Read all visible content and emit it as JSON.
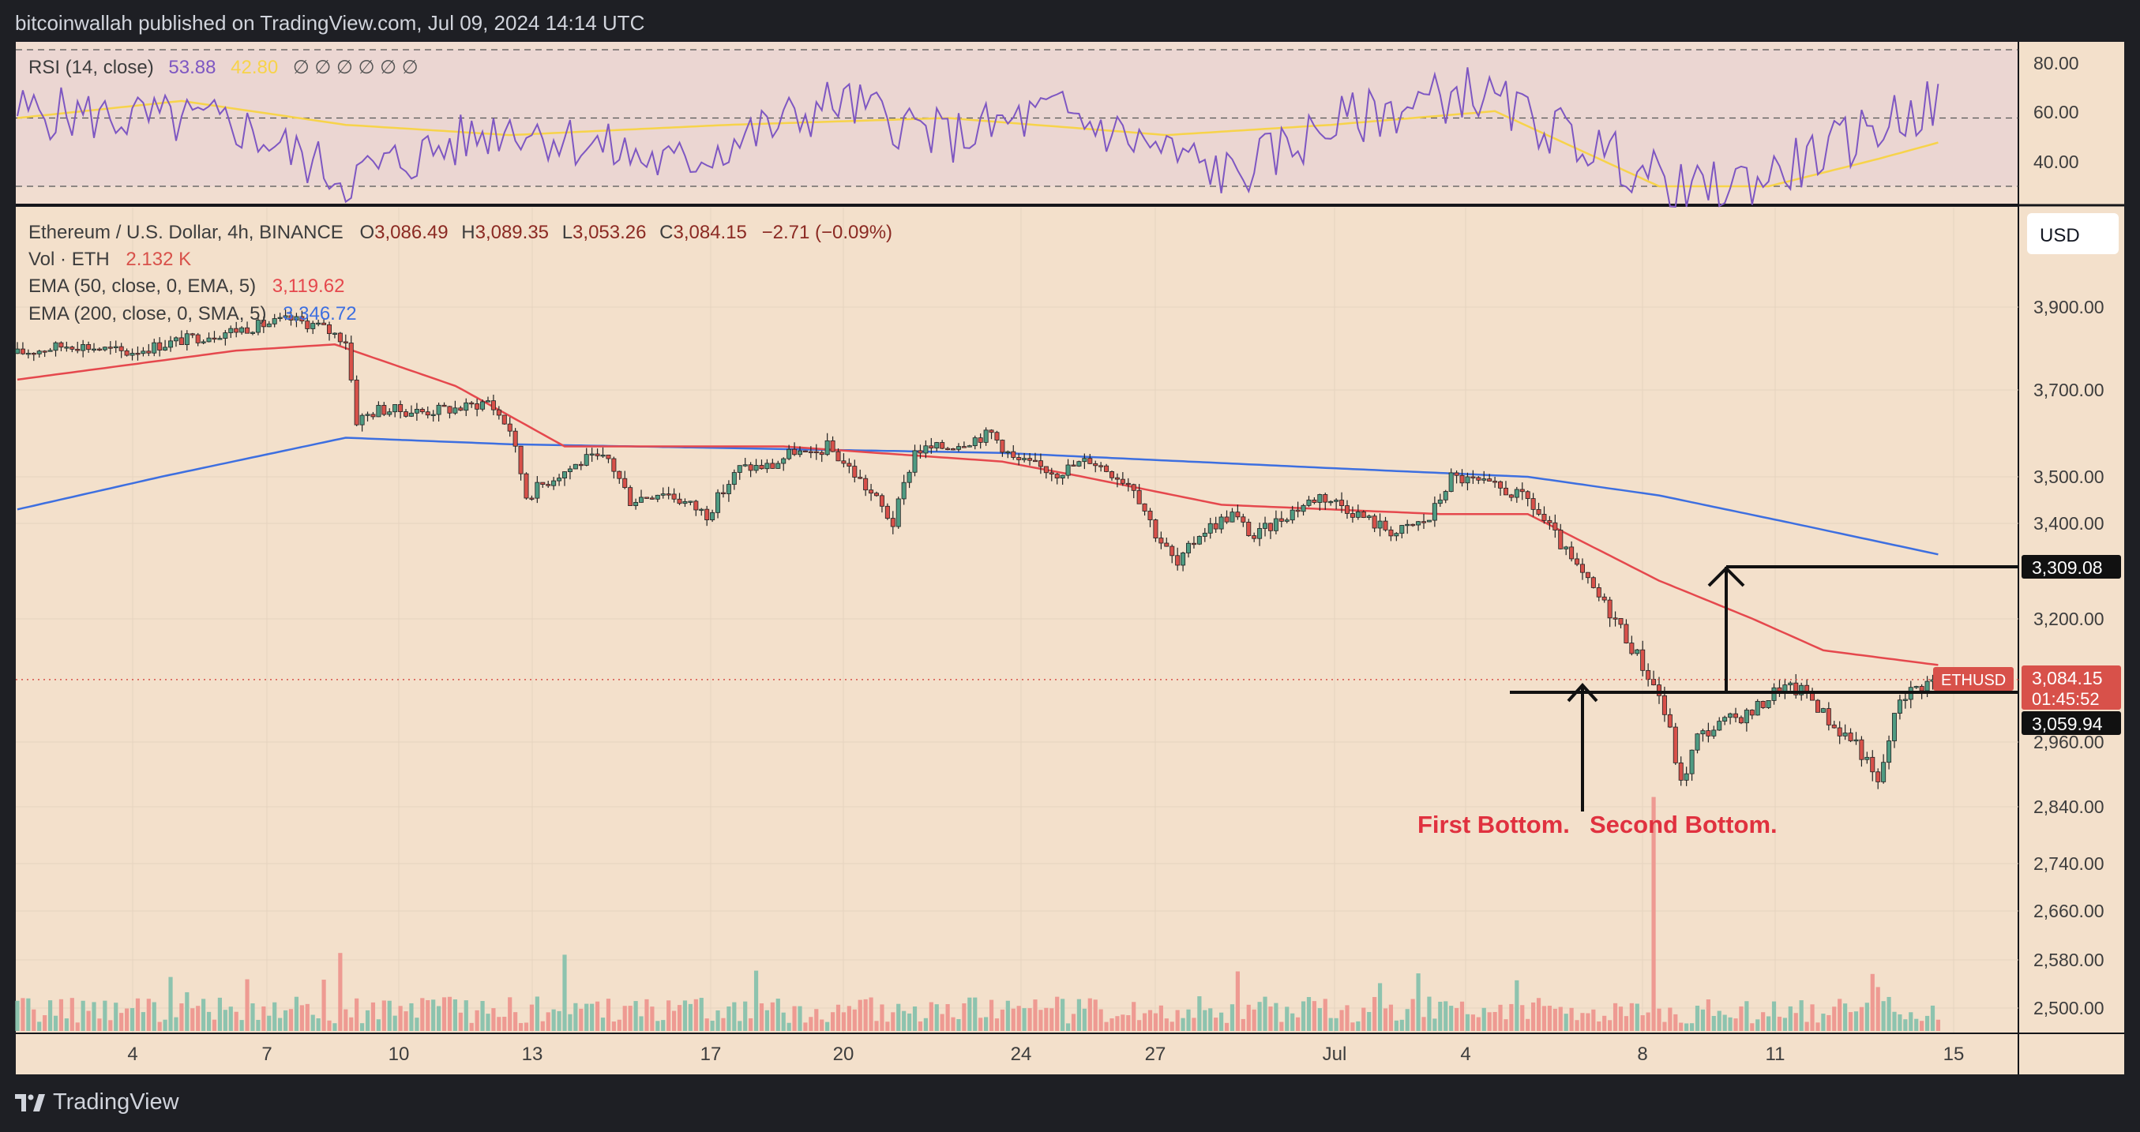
{
  "header": {
    "published": "bitcoinwallah published on TradingView.com, Jul 09, 2024 14:14 UTC"
  },
  "footer": {
    "brand": "TradingView",
    "icon": "tradingview-logo-icon"
  },
  "rsi": {
    "label": "RSI (14, close)",
    "value": "53.88",
    "ma_value": "42.80",
    "placeholders": "∅ ∅ ∅ ∅ ∅ ∅",
    "levels": [
      "80.00",
      "60.00",
      "40.00"
    ],
    "colors": {
      "line": "#7e57c2",
      "ma": "#f7d34a"
    }
  },
  "legend": {
    "symbol": "Ethereum / U.S. Dollar, 4h, BINANCE",
    "o_label": "O",
    "o": "3,086.49",
    "h_label": "H",
    "h": "3,089.35",
    "l_label": "L",
    "l": "3,053.26",
    "c_label": "C",
    "c": "3,084.15",
    "change": "−2.71 (−0.09%)",
    "vol_label": "Vol · ETH",
    "vol": "2.132 K",
    "ema50_label": "EMA (50, close, 0, EMA, 5)",
    "ema50": "3,119.62",
    "ema200_label": "EMA (200, close, 0, SMA, 5)",
    "ema200": "3,346.72"
  },
  "currency_button": "USD",
  "price_axis": [
    "3,900.00",
    "3,700.00",
    "3,500.00",
    "3,400.00",
    "3,200.00",
    "2,960.00",
    "2,840.00",
    "2,740.00",
    "2,660.00",
    "2,580.00",
    "2,500.00"
  ],
  "price_tags": {
    "target": "3,309.08",
    "current_symbol": "ETHUSD",
    "current": "3,084.15",
    "countdown": "01:45:52",
    "neckline": "3,059.94"
  },
  "time_axis": [
    "4",
    "7",
    "10",
    "13",
    "17",
    "20",
    "24",
    "27",
    "Jul",
    "4",
    "8",
    "11",
    "15"
  ],
  "annotations": {
    "first": "First Bottom.",
    "second": "Second Bottom."
  },
  "colors": {
    "bg": "#f3e0cb",
    "up": "#4f9b82",
    "down": "#d8514a",
    "ema50": "#e5484d",
    "ema200": "#3d6fe0",
    "annotation": "#e0313f"
  },
  "chart_data": {
    "type": "candlestick",
    "title": "Ethereum / U.S. Dollar, 4h, BINANCE",
    "x_dates": [
      "Jun 04",
      "Jun 07",
      "Jun 10",
      "Jun 13",
      "Jun 17",
      "Jun 20",
      "Jun 24",
      "Jun 27",
      "Jul 01",
      "Jul 04",
      "Jul 08",
      "Jul 11",
      "Jul 15"
    ],
    "ylim": [
      2460,
      3980
    ],
    "price_path": [
      [
        0,
        3788
      ],
      [
        10,
        3810
      ],
      [
        20,
        3790
      ],
      [
        30,
        3820
      ],
      [
        40,
        3845
      ],
      [
        50,
        3870
      ],
      [
        55,
        3855
      ],
      [
        60,
        3820
      ],
      [
        62,
        3630
      ],
      [
        66,
        3655
      ],
      [
        74,
        3650
      ],
      [
        82,
        3660
      ],
      [
        86,
        3675
      ],
      [
        90,
        3610
      ],
      [
        93,
        3460
      ],
      [
        98,
        3500
      ],
      [
        104,
        3540
      ],
      [
        108,
        3540
      ],
      [
        112,
        3450
      ],
      [
        118,
        3470
      ],
      [
        126,
        3420
      ],
      [
        132,
        3520
      ],
      [
        138,
        3525
      ],
      [
        142,
        3560
      ],
      [
        145,
        3545
      ],
      [
        148,
        3570
      ],
      [
        152,
        3520
      ],
      [
        157,
        3450
      ],
      [
        160,
        3400
      ],
      [
        164,
        3560
      ],
      [
        170,
        3570
      ],
      [
        178,
        3600
      ],
      [
        182,
        3540
      ],
      [
        190,
        3510
      ],
      [
        196,
        3540
      ],
      [
        200,
        3510
      ],
      [
        204,
        3480
      ],
      [
        208,
        3380
      ],
      [
        212,
        3310
      ],
      [
        216,
        3380
      ],
      [
        222,
        3420
      ],
      [
        226,
        3370
      ],
      [
        232,
        3420
      ],
      [
        238,
        3460
      ],
      [
        242,
        3440
      ],
      [
        248,
        3400
      ],
      [
        252,
        3380
      ],
      [
        258,
        3410
      ],
      [
        262,
        3500
      ],
      [
        266,
        3490
      ],
      [
        272,
        3470
      ],
      [
        276,
        3450
      ],
      [
        280,
        3390
      ],
      [
        284,
        3320
      ],
      [
        288,
        3260
      ],
      [
        292,
        3200
      ],
      [
        296,
        3130
      ],
      [
        300,
        3055
      ],
      [
        302,
        2980
      ],
      [
        304,
        2880
      ],
      [
        307,
        2970
      ],
      [
        312,
        3000
      ],
      [
        317,
        3020
      ],
      [
        322,
        3070
      ],
      [
        327,
        3060
      ],
      [
        332,
        2990
      ],
      [
        336,
        2960
      ],
      [
        340,
        2880
      ],
      [
        344,
        3050
      ],
      [
        348,
        3075
      ],
      [
        351,
        3084
      ]
    ],
    "series": [
      {
        "name": "EMA (50, close, 0, EMA, 5)",
        "path": [
          [
            0,
            3725
          ],
          [
            40,
            3795
          ],
          [
            58,
            3810
          ],
          [
            80,
            3710
          ],
          [
            100,
            3570
          ],
          [
            140,
            3570
          ],
          [
            180,
            3535
          ],
          [
            220,
            3440
          ],
          [
            260,
            3420
          ],
          [
            276,
            3420
          ],
          [
            300,
            3280
          ],
          [
            330,
            3140
          ],
          [
            351,
            3112
          ]
        ]
      },
      {
        "name": "EMA (200, close, 0, SMA, 5)",
        "path": [
          [
            0,
            3430
          ],
          [
            60,
            3590
          ],
          [
            90,
            3575
          ],
          [
            180,
            3555
          ],
          [
            240,
            3520
          ],
          [
            276,
            3500
          ],
          [
            300,
            3460
          ],
          [
            351,
            3335
          ]
        ]
      }
    ],
    "annotated_levels": {
      "neckline": 3059.94,
      "target": 3309.08,
      "current": 3084.15
    },
    "volume_spikes": [
      [
        59,
        2.6
      ],
      [
        299,
        7.8
      ],
      [
        339,
        1.9
      ]
    ],
    "rsi": {
      "ylim": [
        20,
        85
      ],
      "levels": [
        70,
        50,
        30
      ],
      "last": 53.88,
      "ma_last": 42.8
    }
  }
}
